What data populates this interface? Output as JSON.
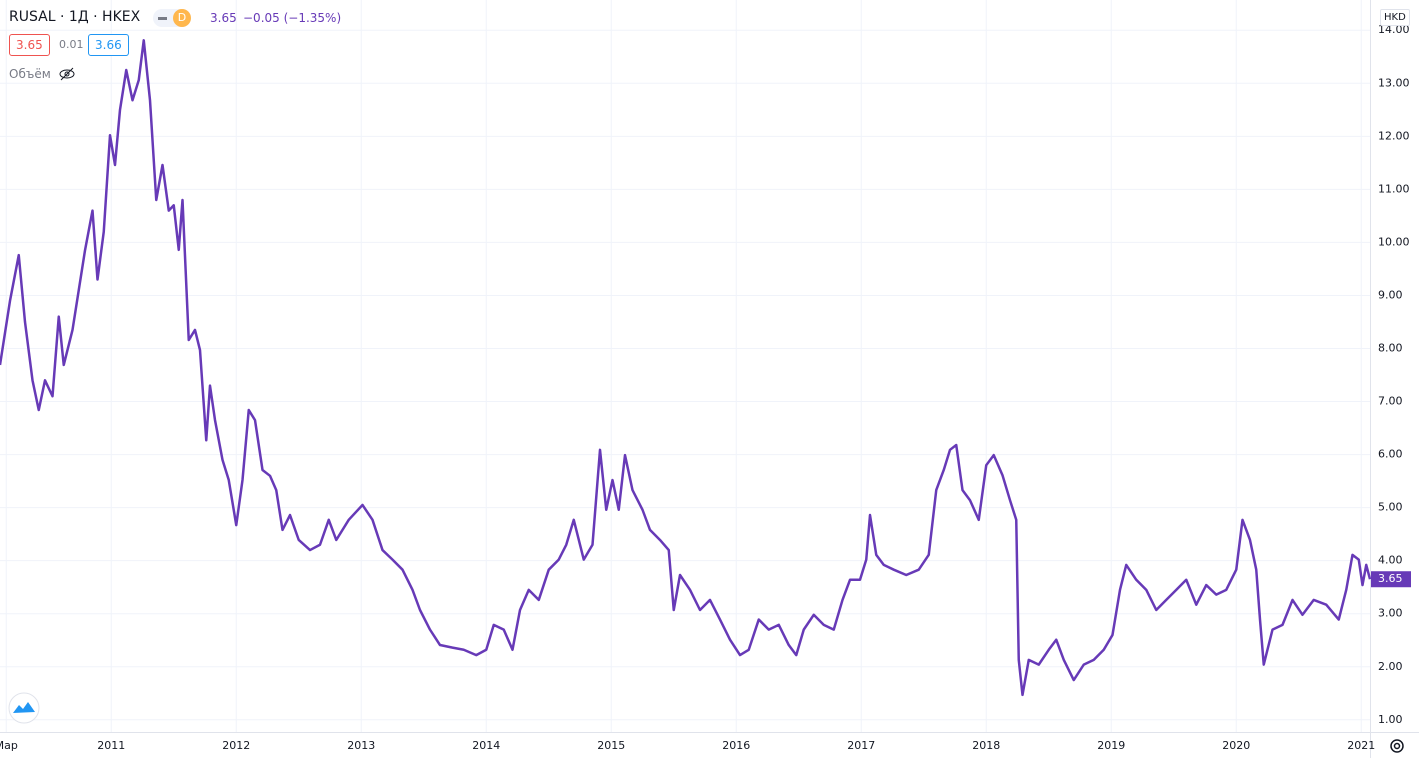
{
  "toolbar": {
    "symbol": "RUSAL · 1Д · HKEX",
    "interval": "D",
    "last": "3.65",
    "change": "−0.05 (−1.35%)",
    "bid": "3.65",
    "spread": "0.01",
    "ask": "3.66",
    "volume_label": "Объём",
    "currency": "HKD"
  },
  "chart_data": {
    "type": "line",
    "x": [
      2010.11,
      2010.19,
      2010.26,
      2010.31,
      2010.37,
      2010.42,
      2010.47,
      2010.53,
      2010.58,
      2010.62,
      2010.69,
      2010.74,
      2010.79,
      2010.85,
      2010.89,
      2010.94,
      2010.99,
      2011.03,
      2011.07,
      2011.12,
      2011.17,
      2011.22,
      2011.26,
      2011.31,
      2011.36,
      2011.41,
      2011.46,
      2011.5,
      2011.54,
      2011.57,
      2011.62,
      2011.67,
      2011.71,
      2011.76,
      2011.79,
      2011.83,
      2011.89,
      2011.94,
      2012.0,
      2012.05,
      2012.1,
      2012.15,
      2012.21,
      2012.27,
      2012.32,
      2012.37,
      2012.43,
      2012.5,
      2012.59,
      2012.67,
      2012.74,
      2012.8,
      2012.9,
      2013.01,
      2013.09,
      2013.17,
      2013.25,
      2013.33,
      2013.41,
      2013.47,
      2013.55,
      2013.63,
      2013.73,
      2013.82,
      2013.92,
      2014.0,
      2014.06,
      2014.14,
      2014.21,
      2014.27,
      2014.34,
      2014.42,
      2014.5,
      2014.58,
      2014.64,
      2014.7,
      2014.78,
      2014.85,
      2014.91,
      2014.96,
      2015.01,
      2015.06,
      2015.11,
      2015.17,
      2015.25,
      2015.31,
      2015.39,
      2015.46,
      2015.5,
      2015.55,
      2015.63,
      2015.71,
      2015.79,
      2015.87,
      2015.95,
      2016.03,
      2016.1,
      2016.18,
      2016.26,
      2016.34,
      2016.42,
      2016.48,
      2016.54,
      2016.62,
      2016.7,
      2016.78,
      2016.85,
      2016.91,
      2016.99,
      2017.04,
      2017.07,
      2017.12,
      2017.18,
      2017.26,
      2017.36,
      2017.46,
      2017.54,
      2017.6,
      2017.66,
      2017.71,
      2017.76,
      2017.81,
      2017.87,
      2017.94,
      2018.0,
      2018.06,
      2018.13,
      2018.19,
      2018.24,
      2018.26,
      2018.29,
      2018.34,
      2018.42,
      2018.5,
      2018.56,
      2018.62,
      2018.7,
      2018.78,
      2018.86,
      2018.94,
      2019.01,
      2019.07,
      2019.12,
      2019.2,
      2019.28,
      2019.36,
      2019.44,
      2019.52,
      2019.6,
      2019.68,
      2019.76,
      2019.84,
      2019.92,
      2020.0,
      2020.05,
      2020.11,
      2020.16,
      2020.19,
      2020.22,
      2020.29,
      2020.37,
      2020.45,
      2020.53,
      2020.62,
      2020.72,
      2020.82,
      2020.88,
      2020.93,
      2020.98,
      2021.01,
      2021.04,
      2021.07
    ],
    "series": [
      {
        "color": "#673ab7",
        "values": [
          7.69,
          8.9,
          9.76,
          8.5,
          7.4,
          6.84,
          7.4,
          7.1,
          8.6,
          7.69,
          8.35,
          9.1,
          9.85,
          10.6,
          9.3,
          10.2,
          12.02,
          11.46,
          12.5,
          13.25,
          12.68,
          13.06,
          13.81,
          12.68,
          10.8,
          11.46,
          10.6,
          10.7,
          9.86,
          10.8,
          8.16,
          8.35,
          7.97,
          6.27,
          7.3,
          6.65,
          5.9,
          5.52,
          4.67,
          5.52,
          6.84,
          6.65,
          5.71,
          5.6,
          5.33,
          4.58,
          4.86,
          4.39,
          4.2,
          4.3,
          4.77,
          4.39,
          4.77,
          5.05,
          4.77,
          4.2,
          4.02,
          3.83,
          3.45,
          3.07,
          2.7,
          2.41,
          2.36,
          2.32,
          2.22,
          2.32,
          2.79,
          2.7,
          2.32,
          3.07,
          3.45,
          3.26,
          3.83,
          4.02,
          4.3,
          4.77,
          4.02,
          4.3,
          6.09,
          4.96,
          5.52,
          4.96,
          5.99,
          5.33,
          4.96,
          4.58,
          4.39,
          4.2,
          3.07,
          3.73,
          3.45,
          3.07,
          3.26,
          2.89,
          2.51,
          2.22,
          2.32,
          2.89,
          2.7,
          2.79,
          2.41,
          2.22,
          2.7,
          2.98,
          2.79,
          2.7,
          3.26,
          3.64,
          3.64,
          4.02,
          4.86,
          4.11,
          3.92,
          3.83,
          3.73,
          3.83,
          4.11,
          5.33,
          5.71,
          6.09,
          6.18,
          5.33,
          5.14,
          4.77,
          5.8,
          5.99,
          5.61,
          5.14,
          4.77,
          2.13,
          1.47,
          2.13,
          2.04,
          2.32,
          2.51,
          2.13,
          1.75,
          2.04,
          2.13,
          2.32,
          2.6,
          3.45,
          3.92,
          3.64,
          3.45,
          3.07,
          3.26,
          3.45,
          3.64,
          3.17,
          3.54,
          3.36,
          3.45,
          3.83,
          4.77,
          4.39,
          3.83,
          2.89,
          2.04,
          2.7,
          2.79,
          3.26,
          2.98,
          3.26,
          3.17,
          2.89,
          3.45,
          4.11,
          4.02,
          3.54,
          3.92,
          3.65
        ]
      }
    ],
    "xlim": [
      2010.11,
      2021.07
    ],
    "xticks": [
      {
        "value": 2010.16,
        "label": "Мар"
      },
      2011,
      2012,
      2013,
      2014,
      2015,
      2016,
      2017,
      2018,
      2019,
      2020,
      2021
    ],
    "ylim": [
      0.77,
      14.57
    ],
    "yticks": [
      {
        "value": 1,
        "label": "1.00"
      },
      {
        "value": 2,
        "label": "2.00"
      },
      {
        "value": 3,
        "label": "3.00"
      },
      {
        "value": 4,
        "label": "4.00"
      },
      {
        "value": 5,
        "label": "5.00"
      },
      {
        "value": 6,
        "label": "6.00"
      },
      {
        "value": 7,
        "label": "7.00"
      },
      {
        "value": 8,
        "label": "8.00"
      },
      {
        "value": 9,
        "label": "9.00"
      },
      {
        "value": 10,
        "label": "10.00"
      },
      {
        "value": 11,
        "label": "11.00"
      },
      {
        "value": 12,
        "label": "12.00"
      },
      {
        "value": 13,
        "label": "13.00"
      },
      {
        "value": 14,
        "label": "14.00"
      }
    ],
    "grid": true
  }
}
